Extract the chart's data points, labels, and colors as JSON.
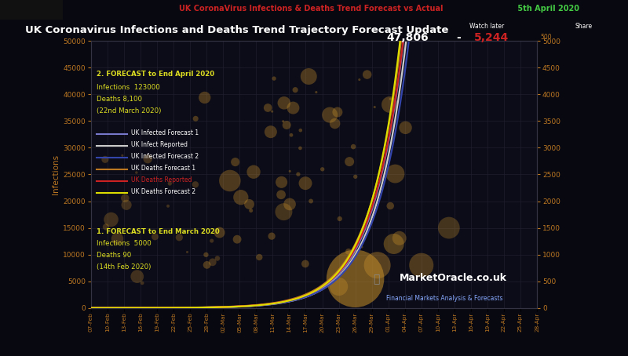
{
  "title_top_red": "UK CoronaVirus Infections & Deaths Trend Forecast vs Actual",
  "title_top_green": " 5th April 2020",
  "title_main": "UK Coronavirus Infections and Deaths Trend Trajectory Forecast Update",
  "ylabel_left": "Infections",
  "ylim_left": [
    0,
    50000
  ],
  "ylim_right": [
    0,
    5000
  ],
  "bg_color": "#080810",
  "plot_bg": "#0c0c18",
  "grid_color": "#1e1e2e",
  "tick_color": "#bb7722",
  "stat_infections": "47,806",
  "stat_deaths": "5,244",
  "ann2_title": "2. FORECAST to End April 2020",
  "ann2_l1": "Infections  123000",
  "ann2_l2": "Deaths 8,100",
  "ann2_l3": "(22nd March 2020)",
  "ann1_title": "1. FORECAST to End March 2020",
  "ann1_l1": "Infections  5000",
  "ann1_l2": "Deaths 90",
  "ann1_l3": "(14th Feb 2020)",
  "watermark": "MarketOracle.co.uk",
  "watermark_sub": "Financial Markets Analysis & Forecasts",
  "watch_later": "Watch later",
  "share": "Share",
  "xtick_labels": [
    "07-Feb",
    "10-Feb",
    "13-Feb",
    "16-Feb",
    "19-Feb",
    "22-Feb",
    "25-Feb",
    "28-Feb",
    "02-Mar",
    "05-Mar",
    "08-Mar",
    "11-Mar",
    "14-Mar",
    "17-Mar",
    "20-Mar",
    "23-Mar",
    "26-Mar",
    "29-Mar",
    "01-Apr",
    "04-Apr",
    "07-Apr",
    "10-Apr",
    "13-Apr",
    "16-Apr",
    "19-Apr",
    "22-Apr",
    "25-Apr",
    "28-Apr"
  ],
  "legend_items": [
    {
      "color": "#7777cc",
      "label": "UK Infected Forecast 1"
    },
    {
      "color": "#cccccc",
      "label": "UK Infect Reported"
    },
    {
      "color": "#3344aa",
      "label": "UK Infected Forecast 2"
    },
    {
      "color": "#bb7722",
      "label": "UK Deaths Forecast 1"
    },
    {
      "color": "#cc2222",
      "label": "UK Deaths Reported"
    },
    {
      "color": "#dddd00",
      "label": "UK Deaths Forecast 2"
    }
  ],
  "n_days": 81
}
